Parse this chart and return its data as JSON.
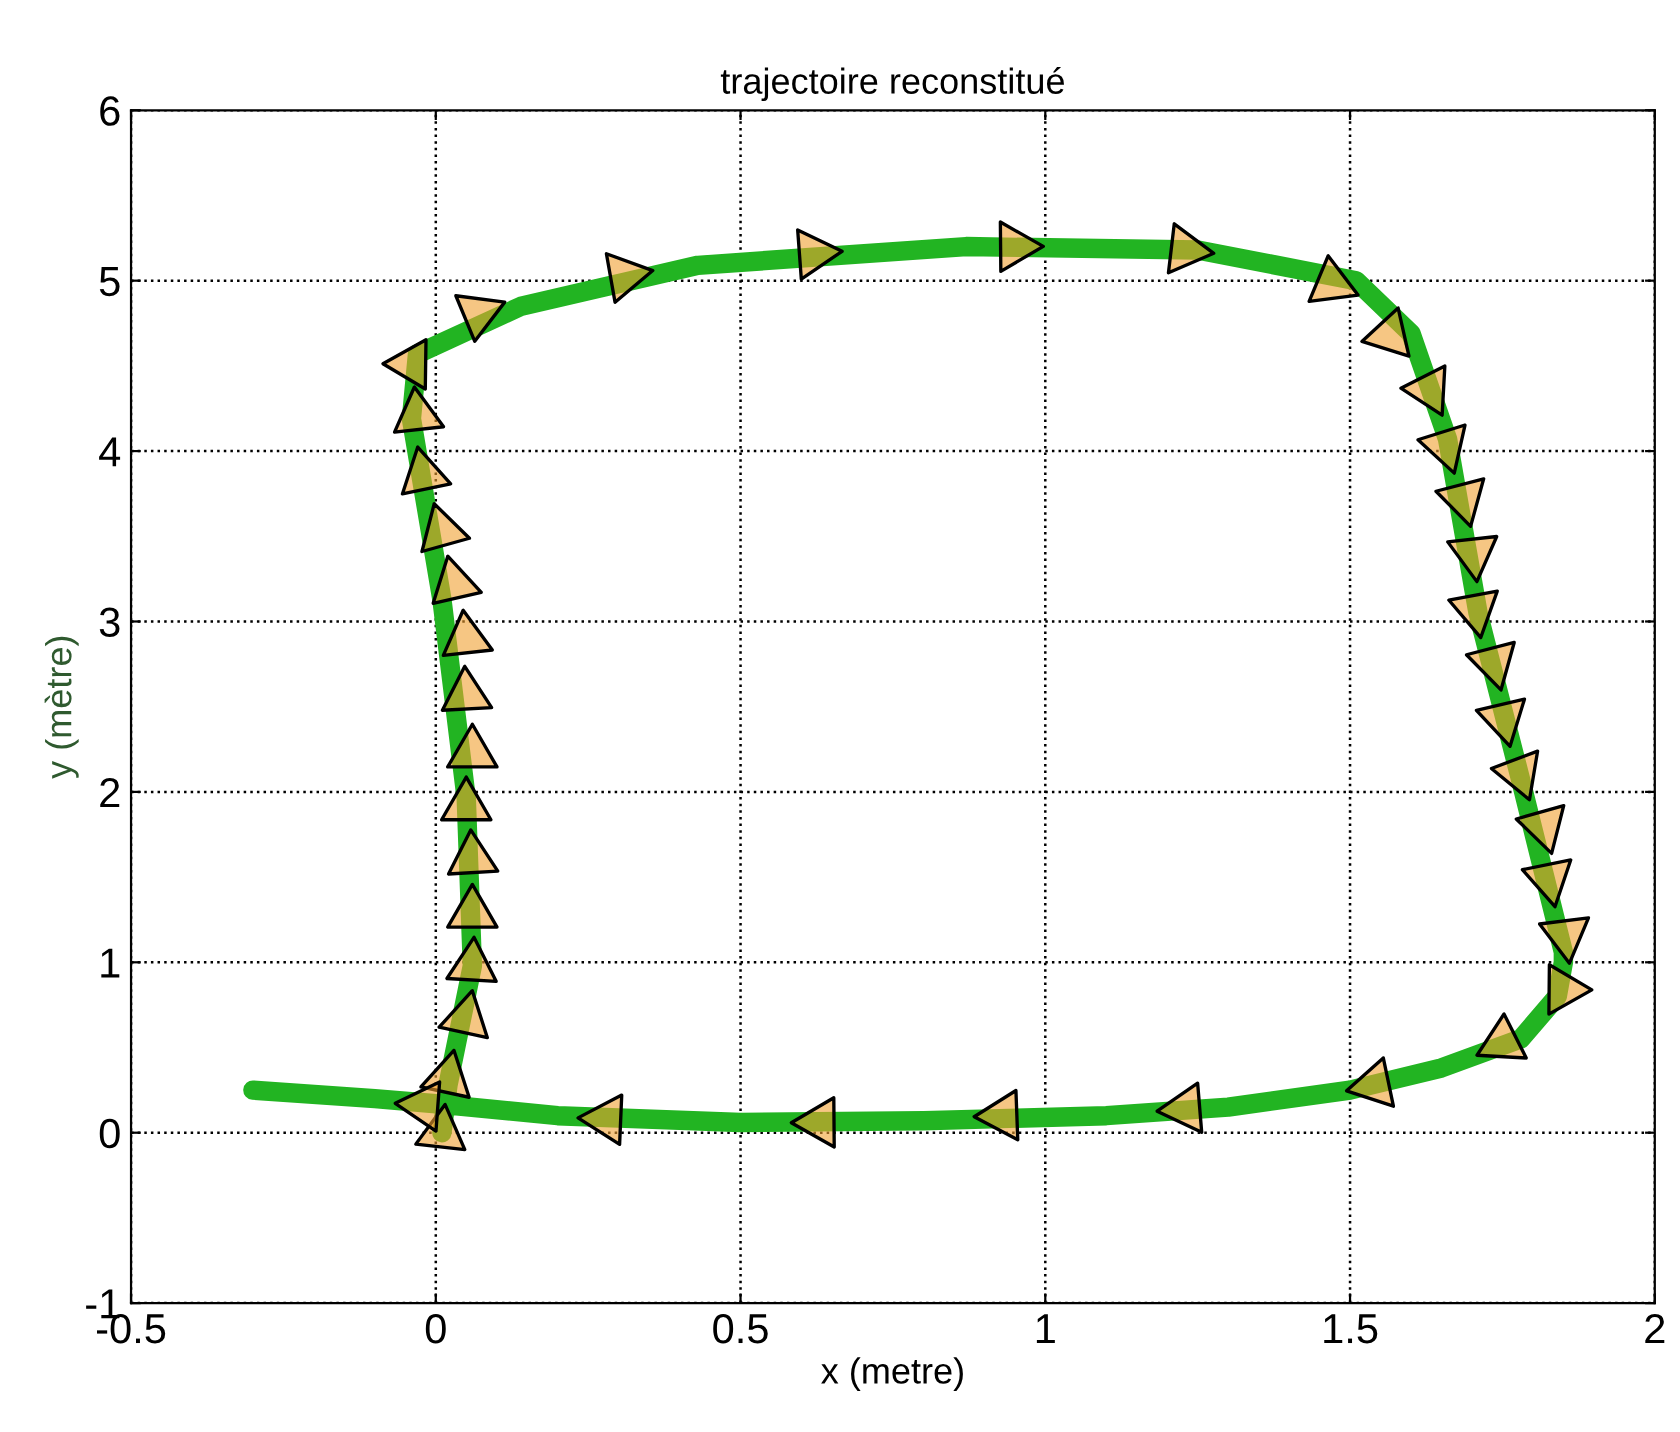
{
  "chart_data": {
    "type": "line",
    "title": "trajectoire reconstitué",
    "xlabel": "x (metre)",
    "ylabel": "y (mètre)",
    "xlim": [
      -0.5,
      2
    ],
    "ylim": [
      -1,
      6
    ],
    "xticks": [
      -0.5,
      0,
      0.5,
      1,
      1.5,
      2
    ],
    "yticks": [
      -1,
      0,
      1,
      2,
      3,
      4,
      5,
      6
    ],
    "grid": true,
    "legend": false,
    "series": [
      {
        "color": "#22b422",
        "marker": "none",
        "line_style": "solid",
        "x": [
          -0.3,
          -0.1,
          0.0,
          0.2,
          0.5,
          0.8,
          1.1,
          1.3,
          1.5,
          1.65,
          1.78,
          1.84,
          1.85,
          1.85,
          1.78,
          1.71,
          1.66,
          1.6,
          1.51,
          1.25,
          0.87,
          0.43,
          0.14,
          -0.03,
          -0.04,
          0.01,
          0.05,
          0.06,
          0.02,
          0.01
        ],
        "values": [
          0.25,
          0.2,
          0.17,
          0.1,
          0.06,
          0.07,
          0.1,
          0.15,
          0.25,
          0.38,
          0.55,
          0.8,
          1.0,
          1.06,
          2.07,
          3.05,
          4.07,
          4.69,
          5.0,
          5.18,
          5.2,
          5.09,
          4.85,
          4.57,
          4.19,
          3.13,
          1.96,
          0.98,
          0.28,
          0.0
        ]
      },
      {
        "type": "scatter",
        "color": "#f0a030",
        "marker": "triangle",
        "x": [
          0.01,
          0.02,
          0.05,
          0.06,
          0.06,
          0.06,
          0.05,
          0.06,
          0.05,
          0.05,
          0.03,
          0.01,
          -0.02,
          -0.03,
          -0.04,
          0.07,
          0.31,
          0.62,
          0.95,
          1.23,
          1.47,
          1.565,
          1.63,
          1.657,
          1.686,
          1.703,
          1.706,
          1.736,
          1.752,
          1.778,
          1.818,
          1.827,
          1.854,
          1.85,
          1.75,
          1.54,
          1.23,
          0.93,
          0.63,
          0.28,
          -0.02
        ],
        "values": [
          0.0,
          0.32,
          0.67,
          0.98,
          1.29,
          1.61,
          1.92,
          2.23,
          2.57,
          2.9,
          3.22,
          3.53,
          3.86,
          4.21,
          4.51,
          4.81,
          5.03,
          5.16,
          5.2,
          5.18,
          4.98,
          4.68,
          4.36,
          4.03,
          3.72,
          3.4,
          3.07,
          2.76,
          2.43,
          2.11,
          1.8,
          1.49,
          1.16,
          0.84,
          0.53,
          0.28,
          0.14,
          0.1,
          0.06,
          0.08,
          0.16
        ]
      }
    ]
  }
}
